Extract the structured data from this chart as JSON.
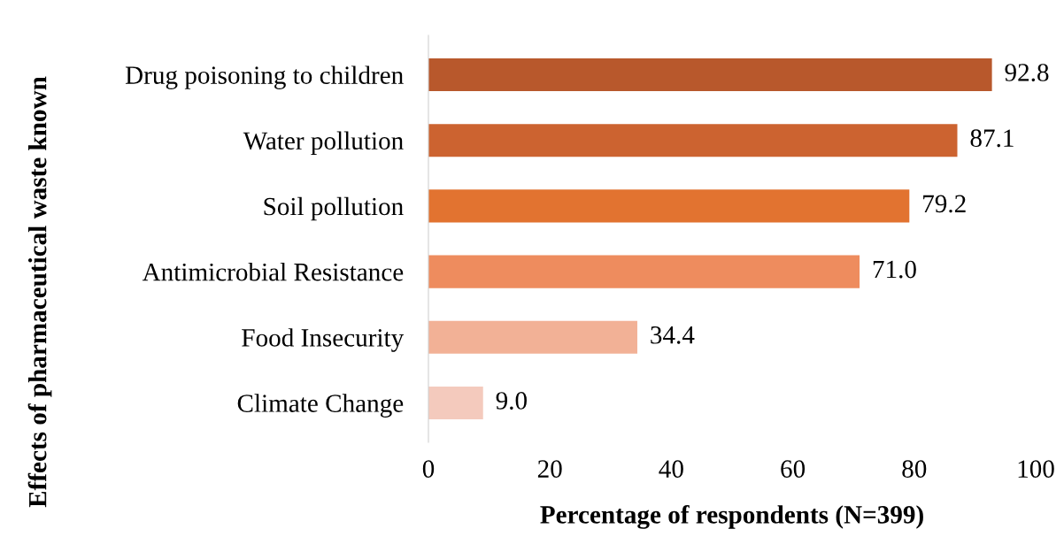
{
  "chart_data": {
    "type": "bar",
    "orientation": "horizontal",
    "xlabel": "Percentage of respondents (N=399)",
    "ylabel": "Effects of pharmaceutical waste known",
    "categories": [
      "Drug poisoning to children",
      "Water pollution",
      "Soil pollution",
      "Antimicrobial Resistance",
      "Food Insecurity",
      "Climate Change"
    ],
    "values": [
      92.8,
      87.1,
      79.2,
      71.0,
      34.4,
      9.0
    ],
    "value_labels": [
      "92.8",
      "87.1",
      "79.2",
      "71.0",
      "34.4",
      "9.0"
    ],
    "colors": [
      "#b8582c",
      "#cc6330",
      "#e27330",
      "#ee8c5e",
      "#f2b196",
      "#f4cabd"
    ],
    "xlim": [
      0,
      100
    ],
    "xticks": [
      0,
      20,
      40,
      60,
      80,
      100
    ],
    "grid": false,
    "legend": false
  }
}
